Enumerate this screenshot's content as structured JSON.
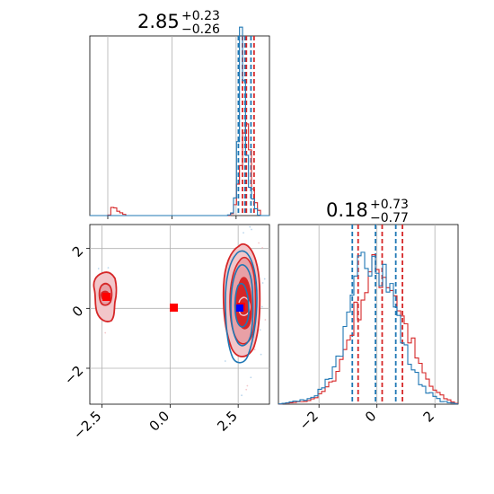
{
  "chart_data": [
    {
      "type": "histogram",
      "panel": "marginal-param-1",
      "title": {
        "value": "2.85",
        "upper": "+0.23",
        "lower": "−0.26"
      },
      "xlim": [
        -3.2,
        3.8
      ],
      "grid": true,
      "series": [
        {
          "color": "#1f77b4",
          "quantiles": [
            2.59,
            2.85,
            3.08
          ]
        },
        {
          "color": "#d62728",
          "quantiles": [
            2.75,
            2.9,
            3.2
          ]
        }
      ],
      "blue_profile": [
        [
          2.2,
          0
        ],
        [
          2.35,
          0.02
        ],
        [
          2.45,
          0.08
        ],
        [
          2.55,
          0.3
        ],
        [
          2.62,
          0.7
        ],
        [
          2.7,
          1.0
        ],
        [
          2.78,
          0.8
        ],
        [
          2.85,
          0.6
        ],
        [
          2.95,
          0.35
        ],
        [
          3.05,
          0.15
        ],
        [
          3.2,
          0.06
        ],
        [
          3.4,
          0.0
        ]
      ],
      "red_profile": [
        [
          -2.45,
          0.0
        ],
        [
          -2.35,
          0.04
        ],
        [
          -2.2,
          0.05
        ],
        [
          -2.05,
          0.02
        ],
        [
          -1.75,
          0.0
        ],
        [
          2.3,
          0.0
        ],
        [
          2.4,
          0.03
        ],
        [
          2.5,
          0.08
        ],
        [
          2.6,
          0.2
        ],
        [
          2.7,
          0.3
        ],
        [
          2.8,
          0.45
        ],
        [
          2.9,
          0.55
        ],
        [
          3.0,
          0.42
        ],
        [
          3.1,
          0.25
        ],
        [
          3.2,
          0.12
        ],
        [
          3.35,
          0.04
        ],
        [
          3.5,
          0.0
        ]
      ]
    },
    {
      "type": "histogram",
      "panel": "marginal-param-2",
      "title": {
        "value": "0.18",
        "upper": "+0.73",
        "lower": "−0.77"
      },
      "xlim": [
        -3.4,
        2.8
      ],
      "x_ticks": [
        -2,
        0,
        2
      ],
      "x_tick_labels": [
        "−2",
        "0",
        "2"
      ],
      "grid": true,
      "series": [
        {
          "color": "#1f77b4",
          "quantiles": [
            -0.85,
            -0.05,
            0.65
          ]
        },
        {
          "color": "#d62728",
          "quantiles": [
            -0.65,
            0.18,
            0.88
          ]
        }
      ],
      "blue_profile": [
        [
          -3.4,
          0.0
        ],
        [
          -2.4,
          0.03
        ],
        [
          -2.0,
          0.07
        ],
        [
          -1.6,
          0.18
        ],
        [
          -1.2,
          0.35
        ],
        [
          -0.9,
          0.55
        ],
        [
          -0.6,
          0.8
        ],
        [
          -0.3,
          0.93
        ],
        [
          -0.1,
          1.0
        ],
        [
          0.1,
          0.9
        ],
        [
          0.4,
          0.75
        ],
        [
          0.7,
          0.55
        ],
        [
          1.0,
          0.32
        ],
        [
          1.4,
          0.16
        ],
        [
          1.8,
          0.07
        ],
        [
          2.2,
          0.02
        ],
        [
          2.8,
          0.0
        ]
      ],
      "red_profile": [
        [
          -3.4,
          0.0
        ],
        [
          -2.4,
          0.02
        ],
        [
          -2.0,
          0.05
        ],
        [
          -1.6,
          0.12
        ],
        [
          -1.2,
          0.28
        ],
        [
          -0.9,
          0.45
        ],
        [
          -0.6,
          0.62
        ],
        [
          -0.3,
          0.75
        ],
        [
          0.0,
          0.82
        ],
        [
          0.3,
          0.8
        ],
        [
          0.6,
          0.7
        ],
        [
          0.9,
          0.52
        ],
        [
          1.2,
          0.38
        ],
        [
          1.5,
          0.22
        ],
        [
          1.9,
          0.1
        ],
        [
          2.3,
          0.04
        ],
        [
          2.8,
          0.0
        ]
      ]
    },
    {
      "type": "contour",
      "panel": "joint-param-1-param-2",
      "xlim": [
        -2.95,
        3.65
      ],
      "ylim": [
        -3.2,
        2.8
      ],
      "x_ticks": [
        -2.5,
        0.0,
        2.5
      ],
      "x_tick_labels": [
        "−2.5",
        "0.0",
        "2.5"
      ],
      "y_ticks": [
        -2,
        0,
        2
      ],
      "y_tick_labels": [
        "−2",
        "0",
        "2"
      ],
      "grid": true,
      "blue_centroid": [
        2.85,
        -0.05
      ],
      "red_centroids": [
        [
          -2.25,
          0.35
        ],
        [
          0.3,
          0.0
        ],
        [
          2.85,
          0.0
        ]
      ],
      "colors": {
        "blue": "#1f77b4",
        "red": "#d62728",
        "red_fill": "#e8a0a6",
        "mean_blue": "#0000ff",
        "mean_red": "#ff0000"
      }
    }
  ]
}
